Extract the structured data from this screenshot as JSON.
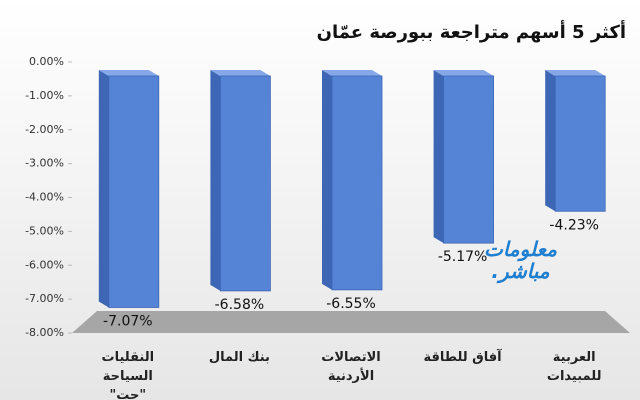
{
  "chart_data": {
    "type": "bar3d",
    "title": "أكثر 5 أسهم متراجعة ببورصة عمّان",
    "categories": [
      "النقليات السياحة \"جت\"",
      "بنك المال",
      "الاتصالات الأردنية",
      "آفاق للطاقة",
      "العربية للمبيدات"
    ],
    "values": [
      -7.07,
      -6.58,
      -6.55,
      -5.17,
      -4.23
    ],
    "value_labels": [
      "-7.07%",
      "-6.58%",
      "-6.55%",
      "-5.17%",
      "-4.23%"
    ],
    "color": "#5584d6",
    "ylim": [
      -8,
      0
    ],
    "yticks": [
      {
        "value": 0,
        "label": "0.00%"
      },
      {
        "value": -1,
        "label": "-1.00%"
      },
      {
        "value": -2,
        "label": "-2.00%"
      },
      {
        "value": -3,
        "label": "-3.00%"
      },
      {
        "value": -4,
        "label": "-4.00%"
      },
      {
        "value": -5,
        "label": "-5.00%"
      },
      {
        "value": -6,
        "label": "-6.00%"
      },
      {
        "value": -7,
        "label": "-7.00%"
      },
      {
        "value": -8,
        "label": "-8.00%"
      }
    ],
    "grid": false,
    "watermark": [
      "معلومات",
      "مباشر."
    ]
  }
}
